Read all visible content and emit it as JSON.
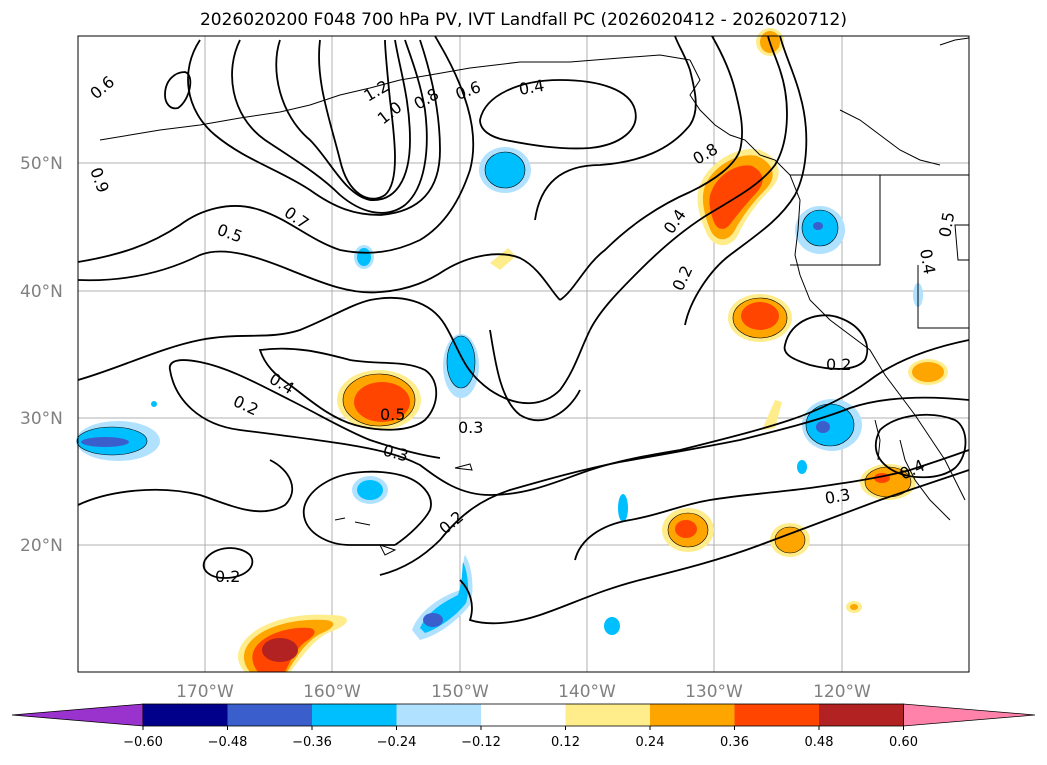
{
  "title": "2026020200 F048 700 hPa PV, IVT Landfall PC (2026020412 - 2026020712)",
  "lat_labels": [
    "50°N",
    "40°N",
    "30°N",
    "20°N"
  ],
  "lon_labels": [
    "170°W",
    "160°W",
    "150°W",
    "140°W",
    "130°W",
    "120°W"
  ],
  "colorbar": {
    "ticks": [
      "−0.60",
      "−0.48",
      "−0.36",
      "−0.24",
      "−0.12",
      "0.12",
      "0.24",
      "0.36",
      "0.48",
      "0.60"
    ],
    "colors": [
      "#9a32cd",
      "#00008b",
      "#3a5fcd",
      "#00bfff",
      "#b0e2ff",
      "#ffffff",
      "#ffec8b",
      "#ffa500",
      "#ff4500",
      "#b22222",
      "#ff82ab"
    ]
  },
  "contour_labels": [
    "0.6",
    "1.2",
    "1.0",
    "0.8",
    "0.6",
    "0.4",
    "0.7",
    "0.5",
    "0.4",
    "0.2",
    "0.5",
    "0.3",
    "0.3",
    "0.2",
    "0.2",
    "0.4",
    "0.2",
    "0.8",
    "0.2",
    "0.3",
    "0.4",
    "0.5",
    "0.4",
    "0.9"
  ]
}
